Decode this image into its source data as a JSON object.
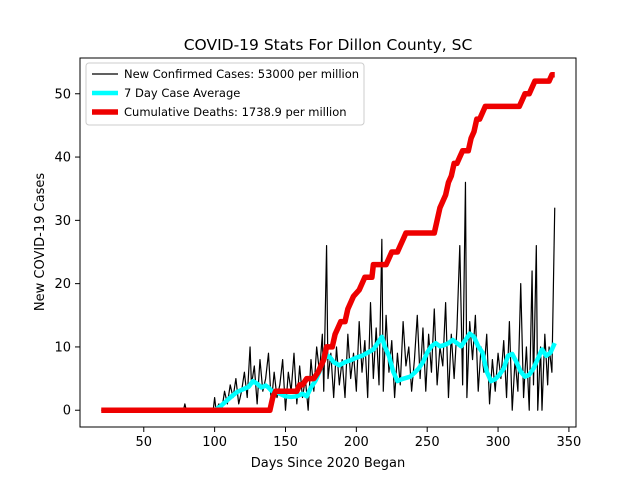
{
  "chart_data": {
    "type": "line",
    "title": "COVID-19 Stats For Dillon County, SC",
    "xlabel": "Days Since 2020 Began",
    "ylabel": "New COVID-19 Cases",
    "xlim": [
      5,
      355
    ],
    "ylim": [
      -2.65,
      55.65
    ],
    "xticks": [
      50,
      100,
      150,
      200,
      250,
      300,
      350
    ],
    "yticks": [
      0,
      10,
      20,
      30,
      40,
      50
    ],
    "grid": false,
    "legend_position": "top-left",
    "series": [
      {
        "name": "New Confirmed Cases: 53000 per million",
        "color": "#000000",
        "style": "thin",
        "points": [
          [
            20,
            0
          ],
          [
            78,
            0
          ],
          [
            79,
            1
          ],
          [
            80,
            0
          ],
          [
            99,
            0
          ],
          [
            100,
            2
          ],
          [
            101,
            0
          ],
          [
            103,
            1
          ],
          [
            105,
            0
          ],
          [
            107,
            3
          ],
          [
            109,
            1
          ],
          [
            111,
            4
          ],
          [
            113,
            2
          ],
          [
            115,
            5
          ],
          [
            117,
            1
          ],
          [
            119,
            3
          ],
          [
            121,
            6
          ],
          [
            123,
            2
          ],
          [
            125,
            10
          ],
          [
            126,
            4
          ],
          [
            128,
            7
          ],
          [
            130,
            1
          ],
          [
            132,
            8
          ],
          [
            134,
            3
          ],
          [
            136,
            5
          ],
          [
            138,
            9
          ],
          [
            140,
            1
          ],
          [
            142,
            6
          ],
          [
            144,
            2
          ],
          [
            146,
            4
          ],
          [
            148,
            8
          ],
          [
            150,
            0
          ],
          [
            152,
            6
          ],
          [
            154,
            3
          ],
          [
            156,
            9
          ],
          [
            158,
            1
          ],
          [
            160,
            7
          ],
          [
            162,
            2
          ],
          [
            164,
            5
          ],
          [
            166,
            0
          ],
          [
            168,
            8
          ],
          [
            170,
            3
          ],
          [
            172,
            10
          ],
          [
            174,
            6
          ],
          [
            176,
            12
          ],
          [
            177,
            3
          ],
          [
            179,
            26
          ],
          [
            180,
            5
          ],
          [
            182,
            9
          ],
          [
            184,
            2
          ],
          [
            186,
            10
          ],
          [
            188,
            4
          ],
          [
            190,
            8
          ],
          [
            192,
            2
          ],
          [
            194,
            12
          ],
          [
            196,
            5
          ],
          [
            198,
            9
          ],
          [
            200,
            3
          ],
          [
            202,
            14
          ],
          [
            204,
            6
          ],
          [
            206,
            11
          ],
          [
            208,
            2
          ],
          [
            210,
            17
          ],
          [
            212,
            5
          ],
          [
            214,
            13
          ],
          [
            216,
            4
          ],
          [
            218,
            27
          ],
          [
            219,
            3
          ],
          [
            221,
            15
          ],
          [
            223,
            6
          ],
          [
            225,
            11
          ],
          [
            227,
            2
          ],
          [
            229,
            9
          ],
          [
            231,
            4
          ],
          [
            233,
            14
          ],
          [
            235,
            7
          ],
          [
            237,
            10
          ],
          [
            239,
            3
          ],
          [
            241,
            8
          ],
          [
            243,
            15
          ],
          [
            245,
            5
          ],
          [
            247,
            13
          ],
          [
            249,
            3
          ],
          [
            251,
            12
          ],
          [
            253,
            6
          ],
          [
            255,
            16
          ],
          [
            257,
            4
          ],
          [
            259,
            10
          ],
          [
            261,
            7
          ],
          [
            263,
            17
          ],
          [
            265,
            2
          ],
          [
            267,
            12
          ],
          [
            269,
            5
          ],
          [
            271,
            13
          ],
          [
            273,
            26
          ],
          [
            275,
            4
          ],
          [
            277,
            36
          ],
          [
            278,
            2
          ],
          [
            280,
            14
          ],
          [
            282,
            8
          ],
          [
            284,
            15
          ],
          [
            286,
            3
          ],
          [
            288,
            10
          ],
          [
            290,
            6
          ],
          [
            292,
            12
          ],
          [
            294,
            1
          ],
          [
            296,
            8
          ],
          [
            298,
            3
          ],
          [
            300,
            9
          ],
          [
            302,
            5
          ],
          [
            304,
            11
          ],
          [
            306,
            2
          ],
          [
            308,
            14
          ],
          [
            310,
            0
          ],
          [
            312,
            8
          ],
          [
            314,
            3
          ],
          [
            316,
            20
          ],
          [
            318,
            2
          ],
          [
            320,
            10
          ],
          [
            322,
            0
          ],
          [
            324,
            22
          ],
          [
            325,
            4
          ],
          [
            327,
            26
          ],
          [
            328,
            0
          ],
          [
            330,
            10
          ],
          [
            331,
            0
          ],
          [
            333,
            12
          ],
          [
            335,
            4
          ],
          [
            336,
            10
          ],
          [
            338,
            6
          ],
          [
            340,
            32
          ]
        ]
      },
      {
        "name": "7 Day Case Average",
        "color": "#00ffff",
        "style": "medium",
        "points": [
          [
            100,
            0
          ],
          [
            104,
            0.6
          ],
          [
            108,
            1.4
          ],
          [
            112,
            2.2
          ],
          [
            116,
            2.9
          ],
          [
            120,
            3.3
          ],
          [
            124,
            3.7
          ],
          [
            127,
            4.6
          ],
          [
            130,
            4.2
          ],
          [
            133,
            3.6
          ],
          [
            136,
            3.9
          ],
          [
            138,
            3.6
          ],
          [
            140,
            3.1
          ],
          [
            143,
            2.9
          ],
          [
            146,
            2.6
          ],
          [
            150,
            2.2
          ],
          [
            154,
            2.1
          ],
          [
            158,
            2.2
          ],
          [
            162,
            2.6
          ],
          [
            165,
            2.2
          ],
          [
            168,
            3.6
          ],
          [
            171,
            4.6
          ],
          [
            174,
            6.1
          ],
          [
            177,
            8.1
          ],
          [
            180,
            8.6
          ],
          [
            182,
            8.2
          ],
          [
            184,
            7.6
          ],
          [
            188,
            7.1
          ],
          [
            192,
            7.6
          ],
          [
            196,
            7.9
          ],
          [
            200,
            8.3
          ],
          [
            204,
            8.6
          ],
          [
            208,
            9.1
          ],
          [
            212,
            9.6
          ],
          [
            215,
            10.6
          ],
          [
            218,
            11.6
          ],
          [
            220,
            10.1
          ],
          [
            223,
            8.6
          ],
          [
            226,
            6.1
          ],
          [
            229,
            4.6
          ],
          [
            232,
            4.9
          ],
          [
            235,
            5.1
          ],
          [
            238,
            5.3
          ],
          [
            241,
            5.9
          ],
          [
            244,
            6.6
          ],
          [
            247,
            7.6
          ],
          [
            250,
            9.1
          ],
          [
            253,
            10.1
          ],
          [
            256,
            10.6
          ],
          [
            259,
            10.1
          ],
          [
            262,
            10.3
          ],
          [
            265,
            10.6
          ],
          [
            268,
            11.1
          ],
          [
            271,
            10.6
          ],
          [
            274,
            10.1
          ],
          [
            277,
            11.1
          ],
          [
            280,
            12.1
          ],
          [
            283,
            11.6
          ],
          [
            286,
            10.1
          ],
          [
            289,
            9.1
          ],
          [
            292,
            6.1
          ],
          [
            295,
            4.6
          ],
          [
            298,
            4.9
          ],
          [
            301,
            5.6
          ],
          [
            304,
            6.6
          ],
          [
            307,
            8.6
          ],
          [
            310,
            8.9
          ],
          [
            313,
            7.6
          ],
          [
            316,
            6.1
          ],
          [
            319,
            5.3
          ],
          [
            322,
            5.6
          ],
          [
            325,
            6.6
          ],
          [
            328,
            8.1
          ],
          [
            331,
            9.6
          ],
          [
            334,
            8.6
          ],
          [
            337,
            9.1
          ],
          [
            340,
            10.6
          ]
        ]
      },
      {
        "name": "Cumulative Deaths: 1738.9 per million",
        "color": "#ee0000",
        "style": "thick",
        "points": [
          [
            20,
            0
          ],
          [
            139,
            0
          ],
          [
            141,
            2
          ],
          [
            143,
            3
          ],
          [
            158,
            3
          ],
          [
            160,
            4
          ],
          [
            162,
            4
          ],
          [
            165,
            5
          ],
          [
            170,
            5
          ],
          [
            173,
            6
          ],
          [
            175,
            7
          ],
          [
            177,
            8
          ],
          [
            179,
            10
          ],
          [
            183,
            10
          ],
          [
            185,
            12
          ],
          [
            187,
            13
          ],
          [
            189,
            14
          ],
          [
            192,
            14
          ],
          [
            194,
            16
          ],
          [
            196,
            17
          ],
          [
            198,
            18
          ],
          [
            202,
            19
          ],
          [
            204,
            20
          ],
          [
            206,
            21
          ],
          [
            211,
            21
          ],
          [
            212,
            23
          ],
          [
            221,
            23
          ],
          [
            223,
            24
          ],
          [
            225,
            25
          ],
          [
            229,
            25
          ],
          [
            231,
            26
          ],
          [
            233,
            27
          ],
          [
            235,
            28
          ],
          [
            255,
            28
          ],
          [
            257,
            30
          ],
          [
            259,
            32
          ],
          [
            261,
            33
          ],
          [
            263,
            34
          ],
          [
            265,
            36
          ],
          [
            267,
            37
          ],
          [
            269,
            39
          ],
          [
            271,
            39
          ],
          [
            273,
            40
          ],
          [
            275,
            41
          ],
          [
            279,
            41
          ],
          [
            281,
            43
          ],
          [
            283,
            44
          ],
          [
            285,
            46
          ],
          [
            287,
            46
          ],
          [
            289,
            47
          ],
          [
            291,
            48
          ],
          [
            315,
            48
          ],
          [
            317,
            49
          ],
          [
            319,
            50
          ],
          [
            322,
            50
          ],
          [
            324,
            51
          ],
          [
            326,
            52
          ],
          [
            336,
            52
          ],
          [
            338,
            53
          ],
          [
            340,
            53
          ]
        ]
      }
    ]
  }
}
